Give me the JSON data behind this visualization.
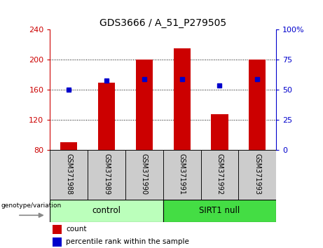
{
  "title": "GDS3666 / A_51_P279505",
  "samples": [
    "GSM371988",
    "GSM371989",
    "GSM371990",
    "GSM371991",
    "GSM371992",
    "GSM371993"
  ],
  "red_values": [
    90,
    170,
    200,
    215,
    128,
    200
  ],
  "blue_values": [
    160,
    172,
    174,
    174,
    166,
    174
  ],
  "ymin": 80,
  "ymax": 240,
  "y_ticks": [
    80,
    120,
    160,
    200,
    240
  ],
  "y2_ticks": [
    0,
    25,
    50,
    75,
    100
  ],
  "y2_tick_labels": [
    "0",
    "25",
    "50",
    "75",
    "100%"
  ],
  "control_label": "control",
  "sirt1_label": "SIRT1 null",
  "group_label": "genotype/variation",
  "legend_red": "count",
  "legend_blue": "percentile rank within the sample",
  "bar_color": "#cc0000",
  "dot_color": "#0000cc",
  "control_bg": "#bbffbb",
  "sirt1_bg": "#44dd44",
  "xticklabel_bg": "#cccccc",
  "title_fontsize": 10,
  "tick_fontsize": 8,
  "label_fontsize": 8,
  "grid_lines": [
    120,
    160,
    200
  ]
}
